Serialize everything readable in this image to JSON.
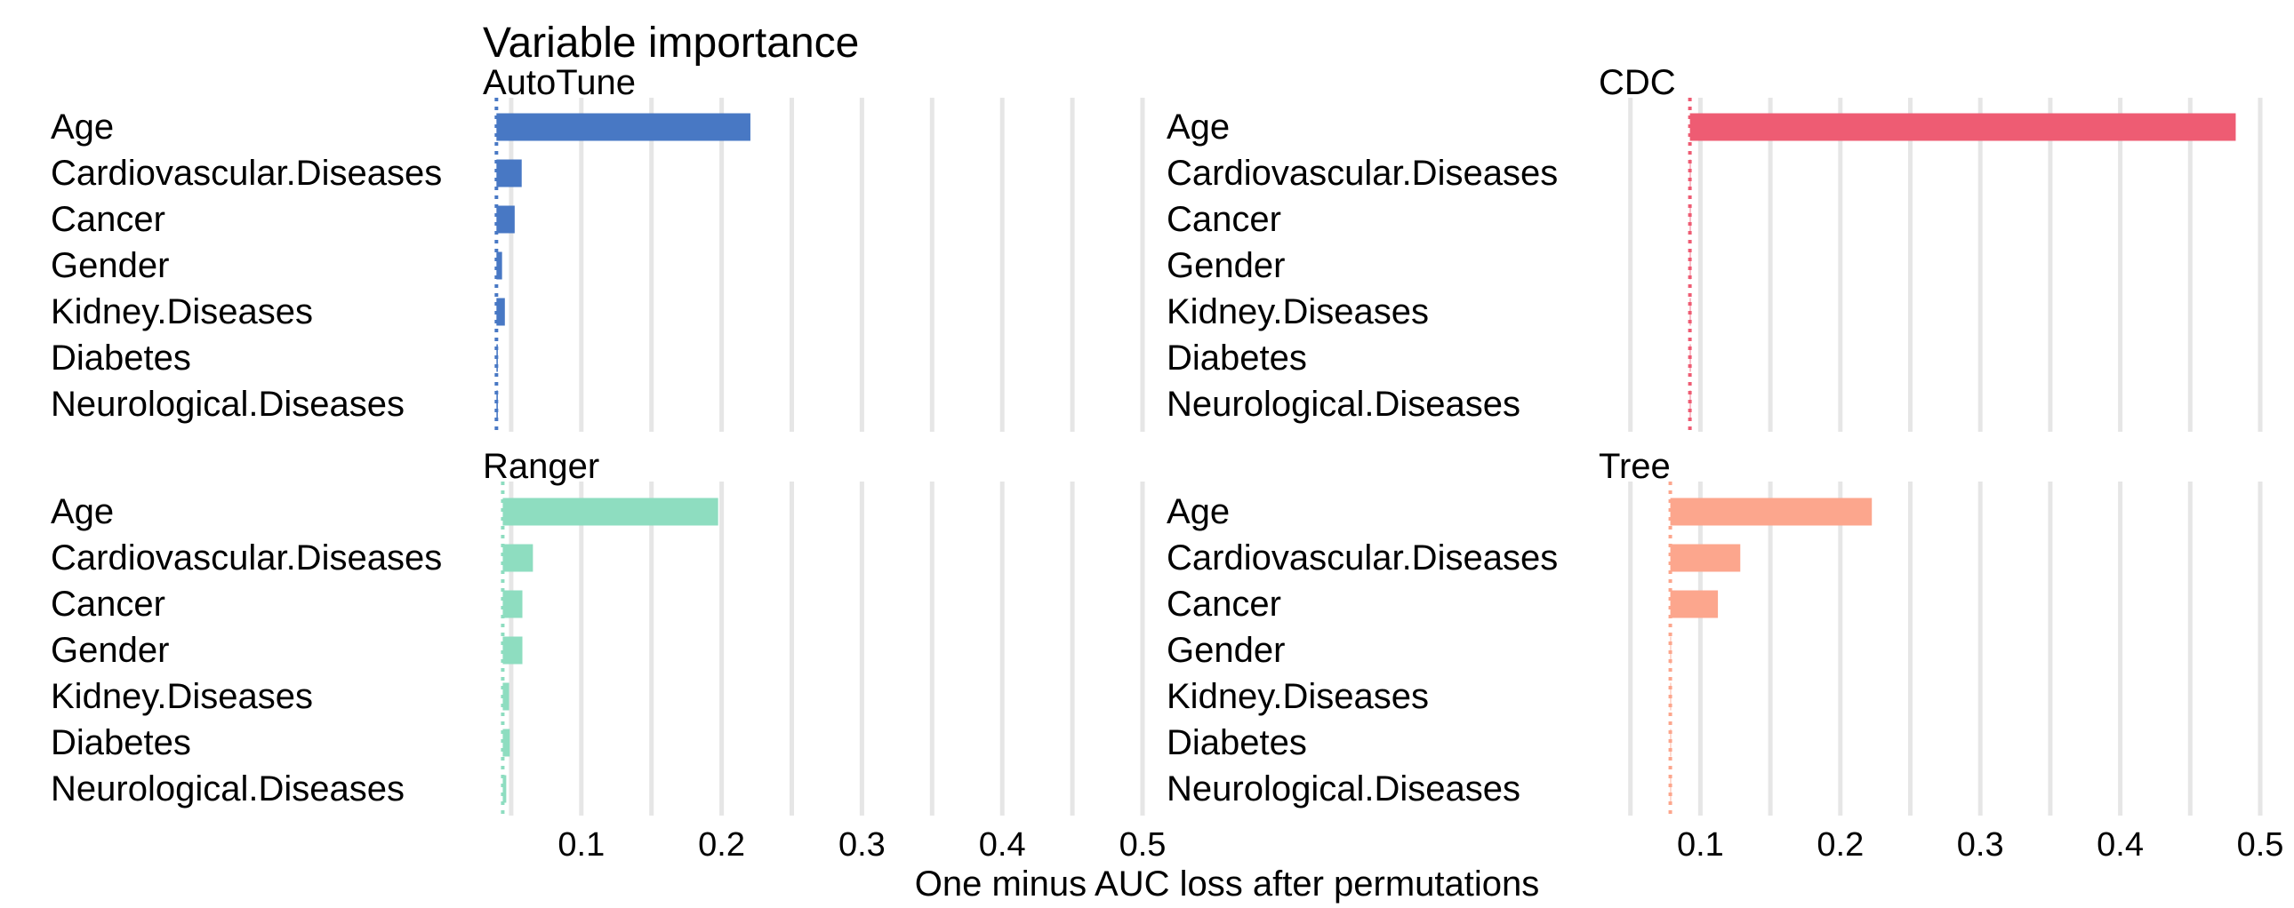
{
  "chart_data": {
    "type": "bar",
    "orientation": "horizontal",
    "title": "Variable importance",
    "xlabel": "One minus AUC loss after permutations",
    "xlim": [
      0,
      0.5
    ],
    "xticks": [
      "0.1",
      "0.2",
      "0.3",
      "0.4",
      "0.5"
    ],
    "grid": true,
    "legend": "none",
    "categories": [
      "Age",
      "Cardiovascular.Diseases",
      "Cancer",
      "Gender",
      "Kidney.Diseases",
      "Diabetes",
      "Neurological.Diseases"
    ],
    "panels": [
      {
        "name": "AutoTune",
        "color": "#4878C4",
        "baseline": 0.0395,
        "values": [
          0.2205,
          0.0575,
          0.0525,
          0.0435,
          0.0455,
          0.0405,
          0.0405
        ]
      },
      {
        "name": "CDC",
        "color": "#EE5C73",
        "baseline": 0.0925,
        "values": [
          0.4825,
          0.0925,
          0.0925,
          0.0925,
          0.0925,
          0.0925,
          0.0925
        ]
      },
      {
        "name": "Ranger",
        "color": "#8EDDC0",
        "baseline": 0.044,
        "values": [
          0.1975,
          0.0655,
          0.058,
          0.058,
          0.0485,
          0.049,
          0.0465
        ]
      },
      {
        "name": "Tree",
        "color": "#FCA68D",
        "baseline": 0.0785,
        "values": [
          0.2225,
          0.1285,
          0.1125,
          0.0785,
          0.0785,
          0.0785,
          0.0785
        ]
      }
    ]
  }
}
